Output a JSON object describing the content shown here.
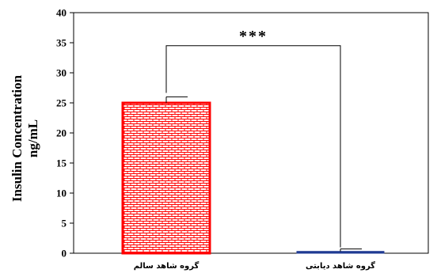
{
  "chart_data": {
    "type": "bar",
    "categories": [
      "گروه شاهد سالم",
      "گروه شاهد دیابتی"
    ],
    "values": [
      25,
      0.3
    ],
    "errors": [
      1.0,
      0.4
    ],
    "ylabel_line1": "Insulin Concentration",
    "ylabel_line2": "ng/mL",
    "ylim": [
      0,
      40
    ],
    "yticks": [
      0,
      5,
      10,
      15,
      20,
      25,
      30,
      35,
      40
    ],
    "significance": "***",
    "bar_colors": [
      "#ff0000",
      "#1f3a93"
    ],
    "grid": false
  }
}
